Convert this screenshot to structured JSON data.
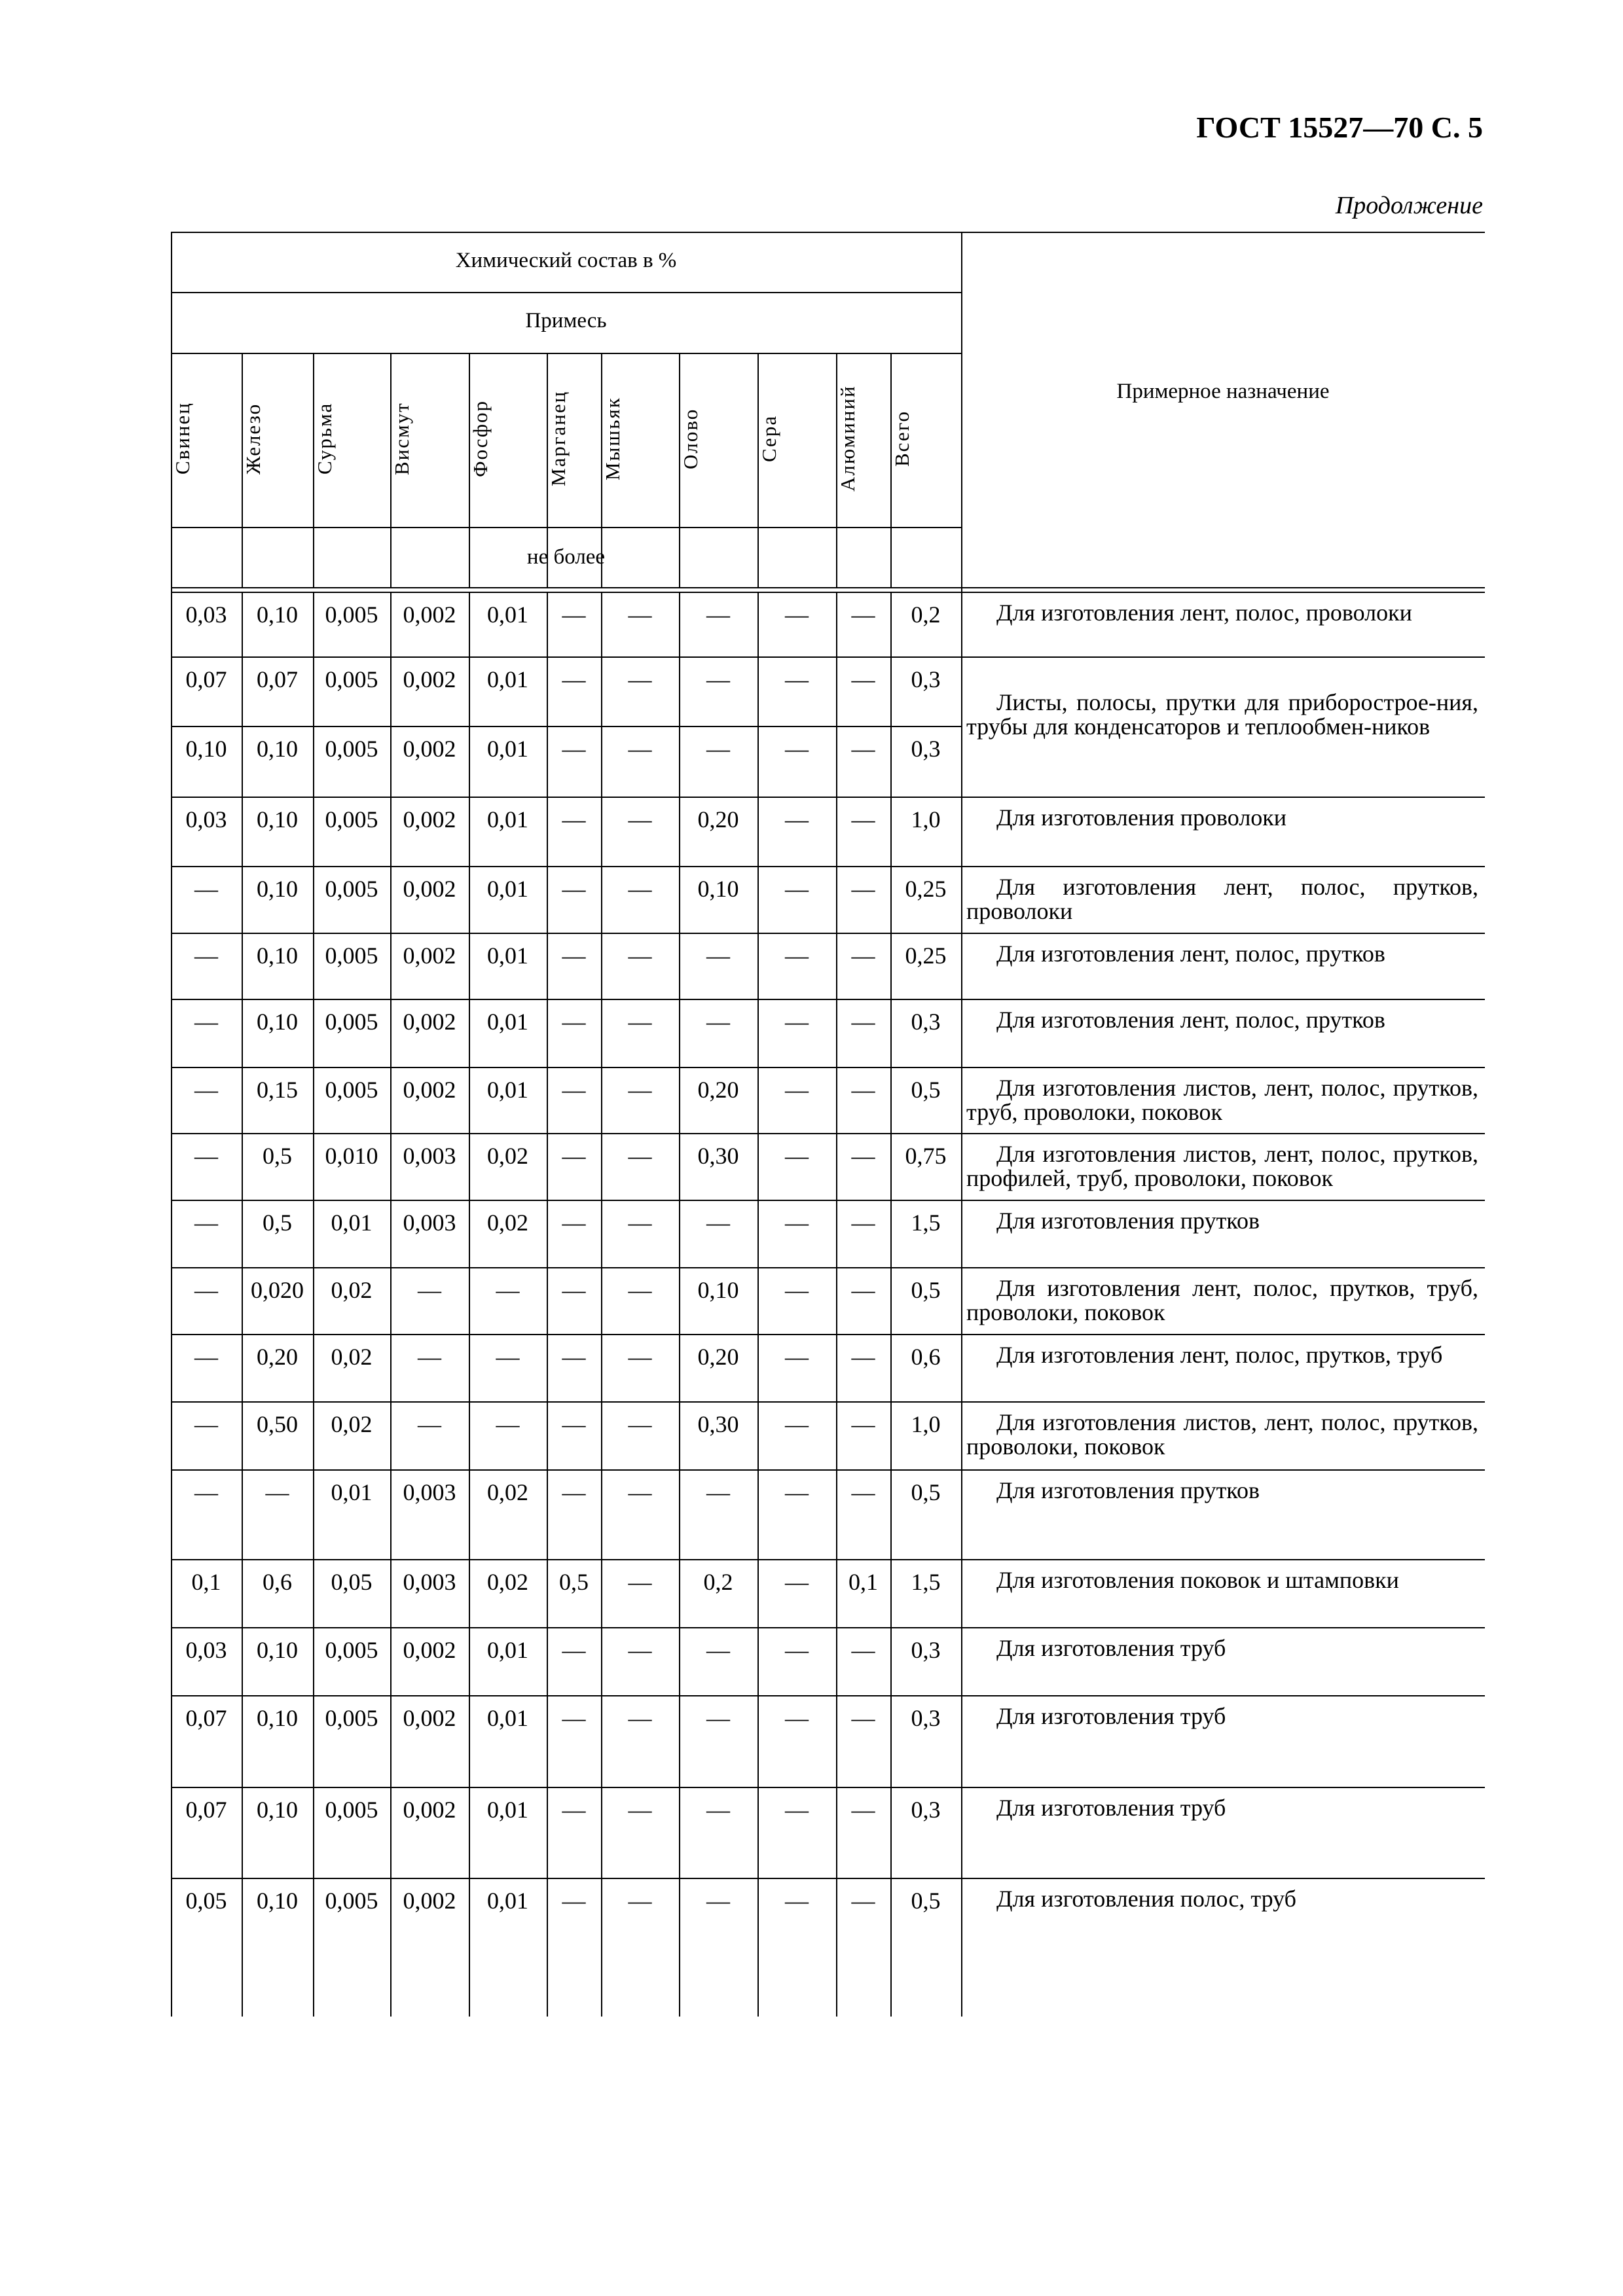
{
  "header": {
    "doc_title": "ГОСТ 15527—70 С. 5",
    "continuation": "Продолжение"
  },
  "table": {
    "group_header": "Химический состав в %",
    "sub_header": "Примесь",
    "limit_label": "не более",
    "purpose_header": "Примерное назначение",
    "columns": [
      "Свинец",
      "Железо",
      "Сурьма",
      "Висмут",
      "Фосфор",
      "Марганец",
      "Мышьяк",
      "Олово",
      "Сера",
      "Алюминий",
      "Всего"
    ],
    "rows": [
      {
        "values": [
          "0,03",
          "0,10",
          "0,005",
          "0,002",
          "0,01",
          "—",
          "—",
          "—",
          "—",
          "—",
          "0,2"
        ],
        "purpose": "Для изготовления лент, полос, проволоки"
      },
      {
        "values": [
          "0,07",
          "0,07",
          "0,005",
          "0,002",
          "0,01",
          "—",
          "—",
          "—",
          "—",
          "—",
          "0,3"
        ],
        "purpose": "Листы, полосы, прутки для приборострое-ния, трубы для конденсаторов и теплообмен-ников"
      },
      {
        "values": [
          "0,10",
          "0,10",
          "0,005",
          "0,002",
          "0,01",
          "—",
          "—",
          "—",
          "—",
          "—",
          "0,3"
        ]
      },
      {
        "values": [
          "0,03",
          "0,10",
          "0,005",
          "0,002",
          "0,01",
          "—",
          "—",
          "0,20",
          "—",
          "—",
          "1,0"
        ],
        "purpose": "Для изготовления проволоки"
      },
      {
        "values": [
          "—",
          "0,10",
          "0,005",
          "0,002",
          "0,01",
          "—",
          "—",
          "0,10",
          "—",
          "—",
          "0,25"
        ],
        "purpose": "Для изготовления лент, полос, прутков, проволоки"
      },
      {
        "values": [
          "—",
          "0,10",
          "0,005",
          "0,002",
          "0,01",
          "—",
          "—",
          "—",
          "—",
          "—",
          "0,25"
        ],
        "purpose": "Для изготовления лент, полос, прутков"
      },
      {
        "values": [
          "—",
          "0,10",
          "0,005",
          "0,002",
          "0,01",
          "—",
          "—",
          "—",
          "—",
          "—",
          "0,3"
        ],
        "purpose": "Для изготовления лент, полос, прутков"
      },
      {
        "values": [
          "—",
          "0,15",
          "0,005",
          "0,002",
          "0,01",
          "—",
          "—",
          "0,20",
          "—",
          "—",
          "0,5"
        ],
        "purpose": "Для изготовления листов, лент, полос, прутков, труб, проволоки, поковок"
      },
      {
        "values": [
          "—",
          "0,5",
          "0,010",
          "0,003",
          "0,02",
          "—",
          "—",
          "0,30",
          "—",
          "—",
          "0,75"
        ],
        "purpose": "Для изготовления листов, лент, полос, прутков, профилей, труб, проволоки, поковок"
      },
      {
        "values": [
          "—",
          "0,5",
          "0,01",
          "0,003",
          "0,02",
          "—",
          "—",
          "—",
          "—",
          "—",
          "1,5"
        ],
        "purpose": "Для изготовления прутков"
      },
      {
        "values": [
          "—",
          "0,020",
          "0,02",
          "—",
          "—",
          "—",
          "—",
          "0,10",
          "—",
          "—",
          "0,5"
        ],
        "purpose": "Для изготовления лент, полос, прутков, труб, проволоки, поковок"
      },
      {
        "values": [
          "—",
          "0,20",
          "0,02",
          "—",
          "—",
          "—",
          "—",
          "0,20",
          "—",
          "—",
          "0,6"
        ],
        "purpose": "Для изготовления лент, полос, прутков, труб"
      },
      {
        "values": [
          "—",
          "0,50",
          "0,02",
          "—",
          "—",
          "—",
          "—",
          "0,30",
          "—",
          "—",
          "1,0"
        ],
        "purpose": "Для изготовления листов, лент, полос, прутков, проволоки, поковок"
      },
      {
        "values": [
          "—",
          "—",
          "0,01",
          "0,003",
          "0,02",
          "—",
          "—",
          "—",
          "—",
          "—",
          "0,5"
        ],
        "purpose": "Для изготовления прутков"
      },
      {
        "values": [
          "0,1",
          "0,6",
          "0,05",
          "0,003",
          "0,02",
          "0,5",
          "—",
          "0,2",
          "—",
          "0,1",
          "1,5"
        ],
        "purpose": "Для изготовления поковок и штамповки"
      },
      {
        "values": [
          "0,03",
          "0,10",
          "0,005",
          "0,002",
          "0,01",
          "—",
          "—",
          "—",
          "—",
          "—",
          "0,3"
        ],
        "purpose": "Для изготовления труб"
      },
      {
        "values": [
          "0,07",
          "0,10",
          "0,005",
          "0,002",
          "0,01",
          "—",
          "—",
          "—",
          "—",
          "—",
          "0,3"
        ],
        "purpose": "Для изготовления труб"
      },
      {
        "values": [
          "0,07",
          "0,10",
          "0,005",
          "0,002",
          "0,01",
          "—",
          "—",
          "—",
          "—",
          "—",
          "0,3"
        ],
        "purpose": "Для изготовления труб"
      },
      {
        "values": [
          "0,05",
          "0,10",
          "0,005",
          "0,002",
          "0,01",
          "—",
          "—",
          "—",
          "—",
          "—",
          "0,5"
        ],
        "purpose": "Для изготовления полос, труб"
      }
    ]
  }
}
